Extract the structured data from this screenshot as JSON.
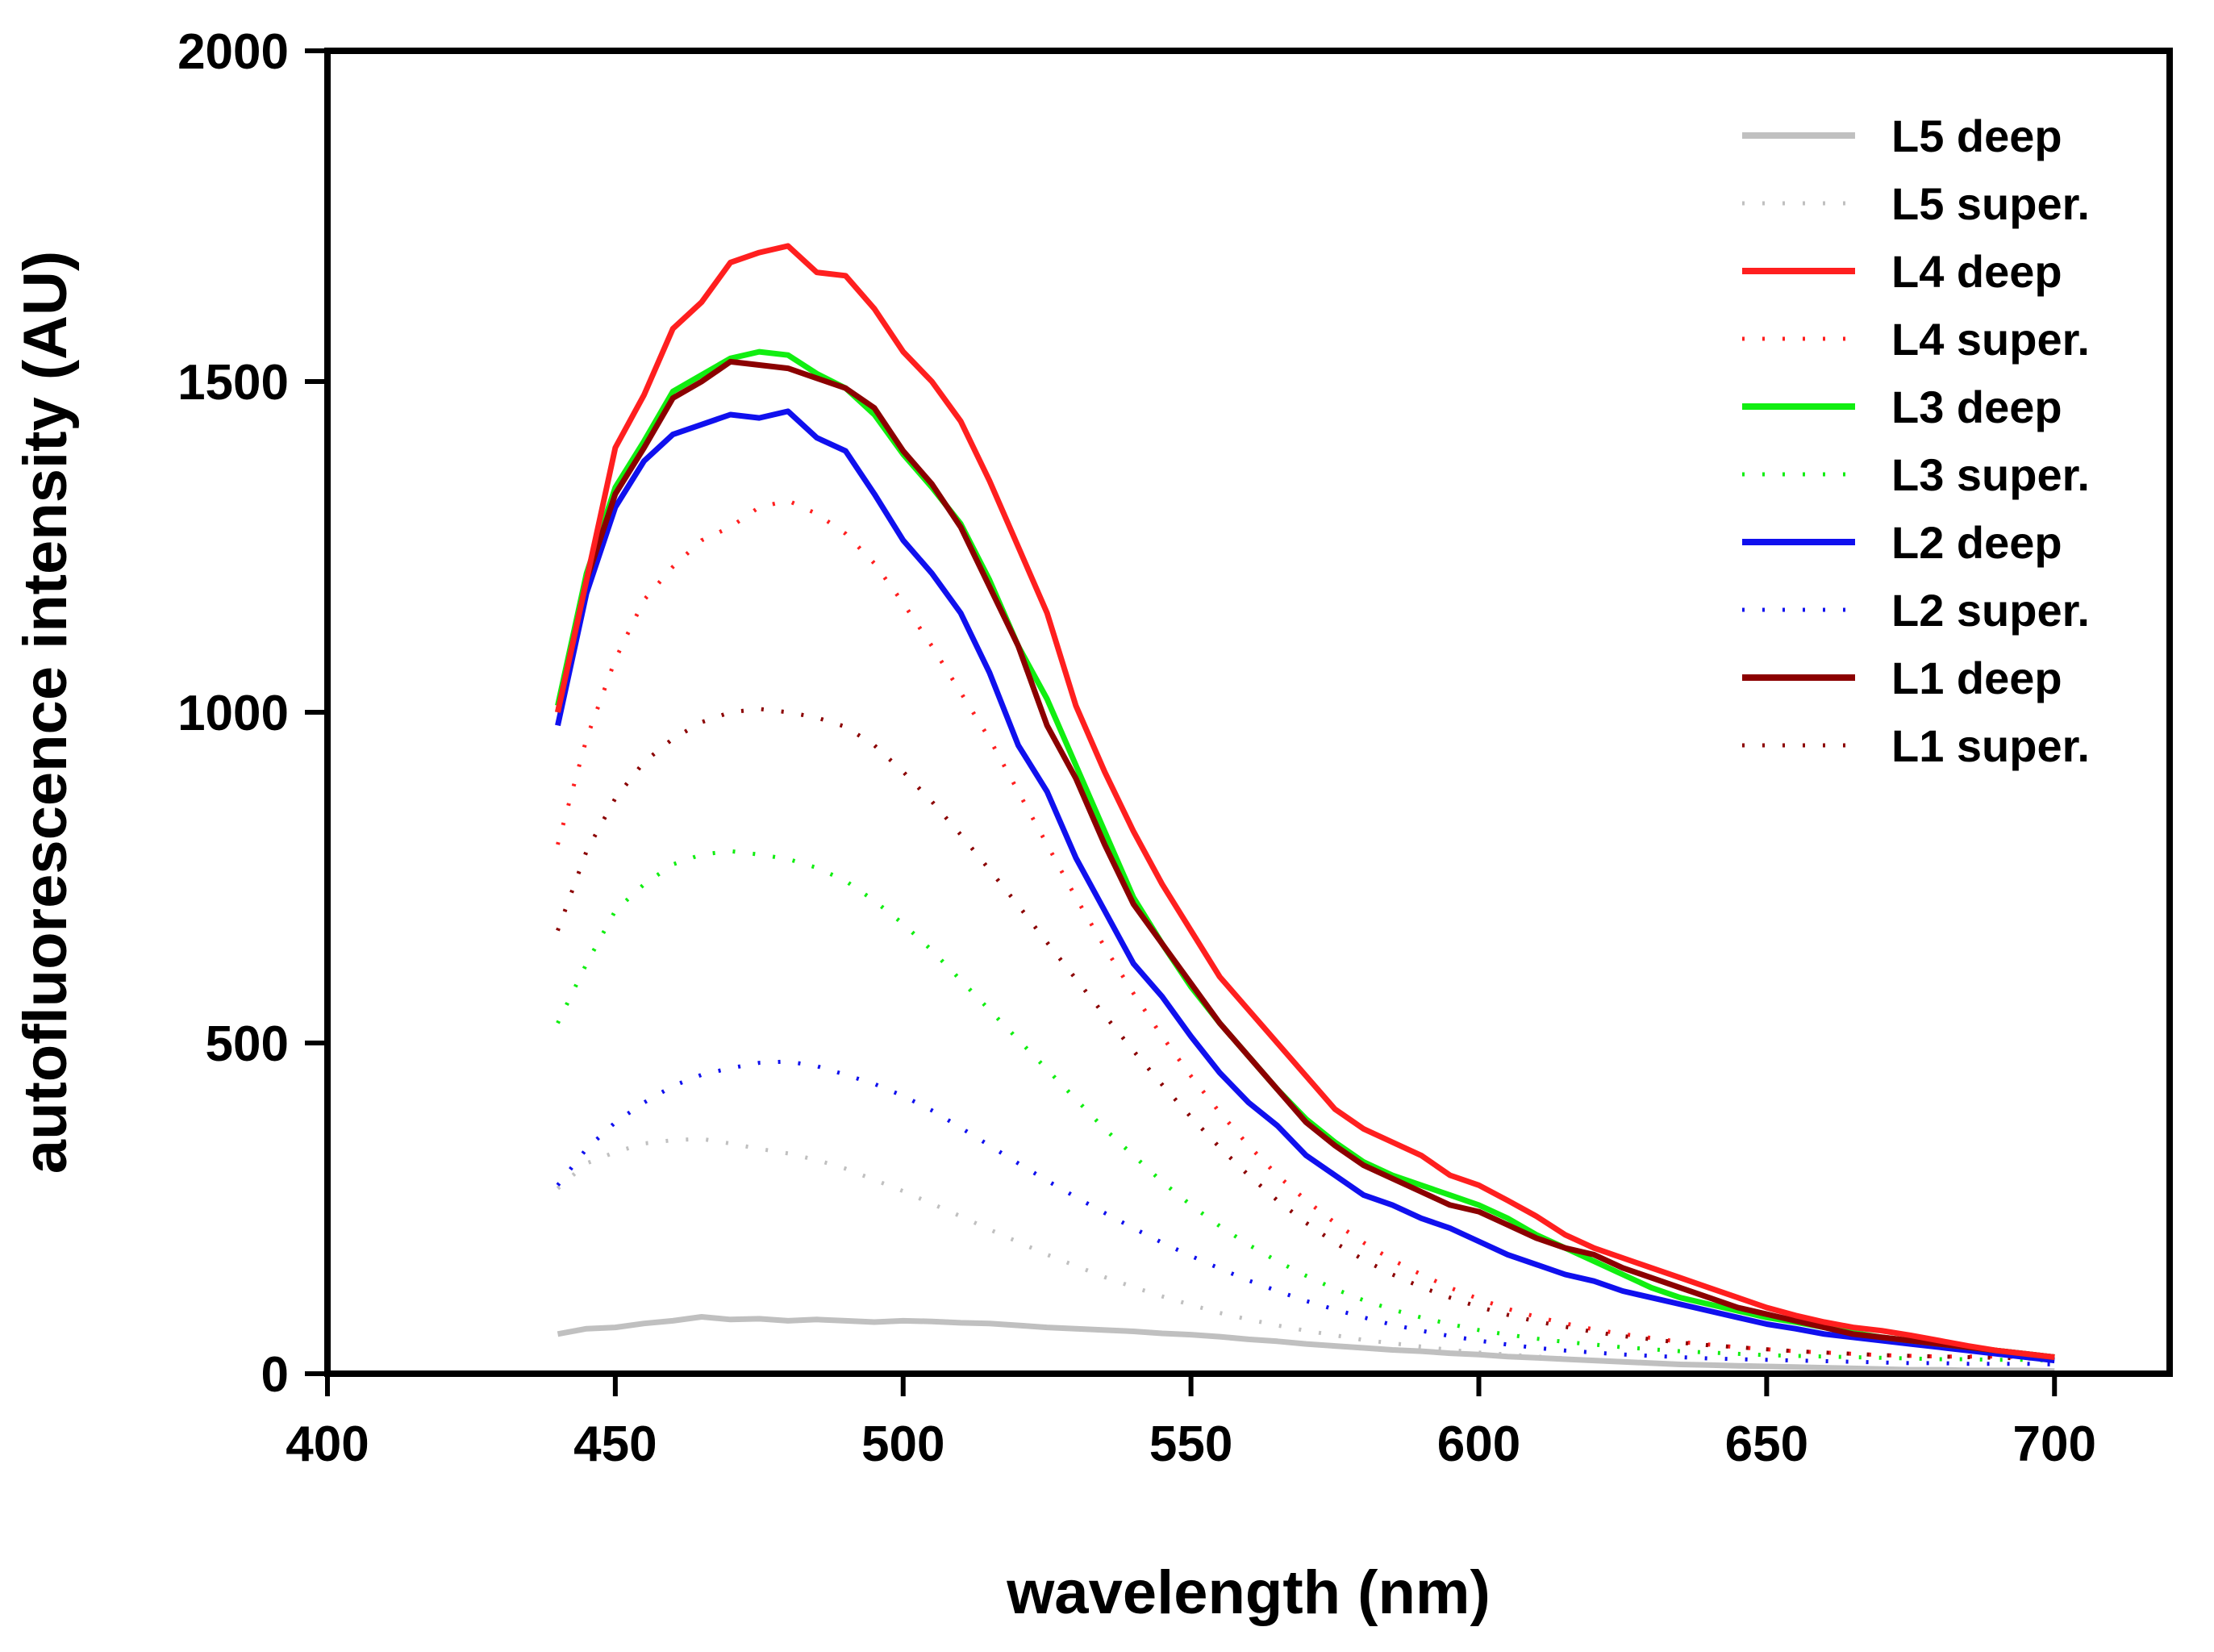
{
  "chart_data": {
    "type": "line",
    "title": "",
    "xlabel": "wavelength (nm)",
    "ylabel": "autofluorescence intensity (AU)",
    "xlim": [
      400,
      720
    ],
    "ylim": [
      0,
      2000
    ],
    "xticks": [
      400,
      450,
      500,
      550,
      600,
      650,
      700
    ],
    "yticks": [
      0,
      500,
      1000,
      1500,
      2000
    ],
    "grid": false,
    "legend_position": "top-right",
    "x": [
      440,
      445,
      450,
      455,
      460,
      465,
      470,
      475,
      480,
      485,
      490,
      495,
      500,
      505,
      510,
      515,
      520,
      525,
      530,
      535,
      540,
      545,
      550,
      555,
      560,
      565,
      570,
      575,
      580,
      585,
      590,
      595,
      600,
      605,
      610,
      615,
      620,
      625,
      630,
      635,
      640,
      645,
      650,
      655,
      660,
      665,
      670,
      675,
      680,
      685,
      690,
      695,
      700
    ],
    "series": [
      {
        "name": "L5 deep",
        "color": "#c0c0c0",
        "style": "solid",
        "values": [
          60,
          68,
          70,
          76,
          80,
          86,
          82,
          83,
          80,
          82,
          80,
          78,
          80,
          79,
          77,
          76,
          73,
          70,
          68,
          66,
          64,
          61,
          59,
          56,
          52,
          49,
          45,
          42,
          39,
          36,
          34,
          31,
          29,
          26,
          24,
          22,
          20,
          18,
          16,
          14,
          13,
          12,
          11,
          10,
          9,
          8,
          7,
          6,
          6,
          5,
          5,
          5,
          4
        ]
      },
      {
        "name": "L5 super.",
        "color": "#c0c0c0",
        "style": "dotted",
        "values": [
          280,
          318,
          335,
          348,
          353,
          355,
          348,
          340,
          333,
          323,
          310,
          293,
          276,
          257,
          238,
          218,
          199,
          180,
          163,
          146,
          131,
          117,
          104,
          92,
          82,
          73,
          65,
          58,
          51,
          46,
          41,
          36,
          32,
          29,
          26,
          23,
          21,
          19,
          17,
          15,
          14,
          12,
          11,
          10,
          9,
          8,
          7,
          6,
          6,
          5,
          5,
          4,
          4
        ]
      },
      {
        "name": "L4 deep",
        "color": "#ff1f1f",
        "style": "solid",
        "values": [
          1000,
          1200,
          1400,
          1480,
          1580,
          1620,
          1680,
          1695,
          1705,
          1665,
          1660,
          1610,
          1545,
          1500,
          1440,
          1350,
          1250,
          1150,
          1010,
          910,
          820,
          740,
          670,
          600,
          550,
          500,
          450,
          400,
          370,
          350,
          330,
          300,
          285,
          262,
          238,
          210,
          190,
          175,
          160,
          145,
          130,
          115,
          100,
          88,
          78,
          70,
          65,
          58,
          50,
          42,
          35,
          30,
          25
        ]
      },
      {
        "name": "L4 super.",
        "color": "#ff1f1f",
        "style": "dotted",
        "values": [
          800,
          960,
          1080,
          1170,
          1220,
          1260,
          1280,
          1310,
          1320,
          1300,
          1270,
          1225,
          1165,
          1100,
          1030,
          960,
          880,
          800,
          720,
          645,
          575,
          510,
          450,
          395,
          345,
          300,
          262,
          228,
          198,
          172,
          150,
          130,
          113,
          98,
          86,
          76,
          67,
          60,
          54,
          48,
          44,
          40,
          37,
          34,
          32,
          30,
          28,
          27,
          26,
          26,
          26,
          25,
          25
        ]
      },
      {
        "name": "L3 deep",
        "color": "#11ee11",
        "style": "solid",
        "values": [
          1010,
          1210,
          1340,
          1410,
          1485,
          1510,
          1535,
          1545,
          1540,
          1512,
          1490,
          1450,
          1390,
          1340,
          1285,
          1200,
          1100,
          1020,
          920,
          820,
          720,
          650,
          585,
          530,
          480,
          430,
          385,
          350,
          320,
          300,
          285,
          270,
          255,
          235,
          210,
          190,
          170,
          150,
          130,
          115,
          105,
          95,
          85,
          78,
          70,
          62,
          55,
          50,
          45,
          40,
          35,
          30,
          25
        ]
      },
      {
        "name": "L3 super.",
        "color": "#11ee11",
        "style": "dotted",
        "values": [
          530,
          620,
          700,
          740,
          770,
          785,
          790,
          785,
          778,
          765,
          745,
          715,
          680,
          640,
          595,
          550,
          505,
          460,
          415,
          370,
          330,
          290,
          255,
          223,
          195,
          170,
          148,
          128,
          111,
          97,
          85,
          75,
          66,
          59,
          53,
          48,
          44,
          40,
          37,
          34,
          32,
          30,
          28,
          27,
          26,
          25,
          24,
          23,
          22,
          22,
          21,
          21,
          20
        ]
      },
      {
        "name": "L2 deep",
        "color": "#1010ee",
        "style": "solid",
        "values": [
          980,
          1180,
          1310,
          1380,
          1420,
          1435,
          1450,
          1445,
          1455,
          1415,
          1395,
          1330,
          1260,
          1210,
          1150,
          1060,
          950,
          880,
          780,
          700,
          620,
          570,
          510,
          455,
          410,
          375,
          330,
          300,
          270,
          255,
          235,
          220,
          200,
          180,
          165,
          150,
          140,
          125,
          115,
          105,
          95,
          85,
          75,
          68,
          60,
          55,
          50,
          45,
          40,
          35,
          30,
          25,
          20
        ]
      },
      {
        "name": "L2 super.",
        "color": "#1010ee",
        "style": "dotted",
        "values": [
          285,
          340,
          380,
          410,
          435,
          452,
          462,
          470,
          472,
          465,
          452,
          438,
          420,
          398,
          372,
          345,
          318,
          292,
          267,
          243,
          220,
          198,
          178,
          159,
          141,
          125,
          110,
          97,
          85,
          74,
          65,
          57,
          50,
          44,
          39,
          35,
          32,
          29,
          27,
          25,
          23,
          22,
          21,
          20,
          19,
          18,
          17,
          16,
          16,
          15,
          15,
          15,
          14
        ]
      },
      {
        "name": "L1 deep",
        "color": "#8b0000",
        "style": "solid",
        "values": [
          1000,
          1200,
          1330,
          1400,
          1475,
          1500,
          1530,
          1525,
          1520,
          1505,
          1490,
          1460,
          1395,
          1345,
          1280,
          1190,
          1100,
          980,
          900,
          800,
          710,
          650,
          590,
          530,
          480,
          430,
          380,
          345,
          315,
          295,
          275,
          255,
          245,
          225,
          205,
          190,
          180,
          160,
          145,
          130,
          115,
          100,
          90,
          80,
          70,
          60,
          55,
          50,
          45,
          40,
          35,
          30,
          25
        ]
      },
      {
        "name": "L1 super.",
        "color": "#8b0000",
        "style": "dotted",
        "values": [
          670,
          790,
          870,
          925,
          960,
          985,
          1000,
          1005,
          1000,
          992,
          978,
          950,
          910,
          865,
          815,
          762,
          708,
          652,
          597,
          542,
          488,
          437,
          388,
          342,
          300,
          262,
          228,
          198,
          172,
          150,
          131,
          115,
          101,
          89,
          79,
          71,
          63,
          57,
          52,
          47,
          43,
          40,
          37,
          34,
          32,
          30,
          28,
          27,
          26,
          25,
          24,
          23,
          22
        ]
      }
    ]
  }
}
